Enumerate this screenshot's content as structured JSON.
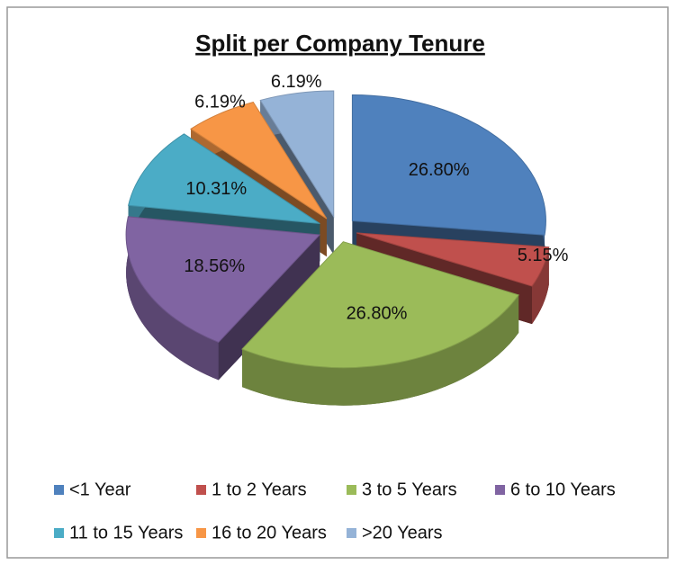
{
  "chart_data": {
    "type": "pie",
    "title": "Split per Company Tenure",
    "categories": [
      "<1 Year",
      "1 to 2 Years",
      "3 to 5 Years",
      "6 to 10 Years",
      "11 to 15 Years",
      "16 to 20 Years",
      ">20 Years"
    ],
    "values": [
      26.8,
      5.15,
      26.8,
      18.56,
      10.31,
      6.19,
      6.19
    ],
    "value_labels": [
      "26.80%",
      "5.15%",
      "26.80%",
      "18.56%",
      "10.31%",
      "6.19%",
      "6.19%"
    ],
    "colors": [
      "#4f81bd",
      "#c0504d",
      "#9bbb59",
      "#8064a2",
      "#4bacc6",
      "#f79646",
      "#95b3d7"
    ],
    "legend": "bottom"
  }
}
